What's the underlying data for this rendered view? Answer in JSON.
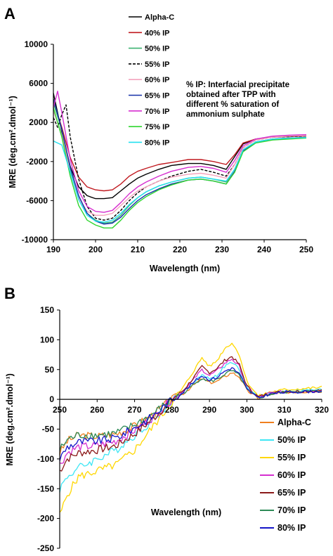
{
  "panels": {
    "a": "A",
    "b": "B"
  },
  "chart_data": [
    {
      "type": "line",
      "panel": "A",
      "xlabel": "Wavelength (nm)",
      "ylabel": "MRE (deg.cm².dmol⁻¹)",
      "xlim": [
        190,
        250
      ],
      "ylim": [
        -10000,
        10000
      ],
      "xticks": [
        190,
        200,
        210,
        220,
        230,
        240,
        250
      ],
      "yticks": [
        10000,
        6000,
        2000,
        -2000,
        -6000,
        -10000
      ],
      "legend_position": "top-center",
      "annotation": [
        "% IP: Interfacial precipitate",
        "obtained after TPP with",
        "different % saturation of",
        "ammonium sulphate"
      ],
      "series": [
        {
          "name": "Alpha-C",
          "color": "#000000",
          "dash": false,
          "x": [
            190,
            192,
            194,
            196,
            198,
            200,
            202,
            204,
            206,
            208,
            210,
            212,
            215,
            218,
            222,
            225,
            228,
            231,
            233,
            235,
            238,
            242,
            246,
            250
          ],
          "y": [
            5000,
            1000,
            -2500,
            -4600,
            -5500,
            -5800,
            -5800,
            -5700,
            -5000,
            -4300,
            -3700,
            -3300,
            -2800,
            -2400,
            -2200,
            -2200,
            -2400,
            -2800,
            -1500,
            -200,
            300,
            500,
            600,
            650
          ]
        },
        {
          "name": "40% IP",
          "color": "#c0191f",
          "dash": false,
          "x": [
            190,
            192,
            194,
            196,
            198,
            200,
            202,
            204,
            206,
            208,
            210,
            212,
            215,
            218,
            222,
            225,
            228,
            231,
            233,
            235,
            238,
            242,
            246,
            250
          ],
          "y": [
            4200,
            1500,
            -1600,
            -3600,
            -4600,
            -4900,
            -5000,
            -4900,
            -4300,
            -3500,
            -3000,
            -2700,
            -2300,
            -2100,
            -1800,
            -1800,
            -2000,
            -2300,
            -1300,
            -100,
            300,
            500,
            550,
            600
          ]
        },
        {
          "name": "50% IP",
          "color": "#3cb371",
          "dash": false,
          "x": [
            190,
            192,
            194,
            196,
            198,
            200,
            202,
            204,
            206,
            208,
            210,
            212,
            215,
            218,
            222,
            225,
            228,
            231,
            233,
            235,
            238,
            242,
            246,
            250
          ],
          "y": [
            4000,
            1200,
            -2800,
            -5600,
            -7300,
            -8000,
            -8300,
            -8200,
            -7500,
            -6500,
            -5700,
            -5100,
            -4500,
            -4100,
            -3700,
            -3600,
            -3800,
            -4100,
            -2800,
            -800,
            0,
            300,
            400,
            450
          ]
        },
        {
          "name": "55% IP",
          "color": "#000000",
          "dash": true,
          "x": [
            190,
            191,
            192,
            193,
            194,
            196,
            198,
            200,
            202,
            204,
            206,
            208,
            210,
            212,
            215,
            218,
            222,
            225,
            228,
            231,
            233,
            235,
            238,
            242,
            246,
            250
          ],
          "y": [
            2500,
            1500,
            2800,
            3800,
            500,
            -3800,
            -6600,
            -7800,
            -8000,
            -7800,
            -7000,
            -6000,
            -5200,
            -4600,
            -4000,
            -3500,
            -3000,
            -2800,
            -3100,
            -3500,
            -2300,
            -600,
            200,
            500,
            550,
            600
          ]
        },
        {
          "name": "60% IP",
          "color": "#f4a3bd",
          "dash": false,
          "x": [
            190,
            192,
            194,
            196,
            198,
            200,
            202,
            204,
            206,
            208,
            210,
            212,
            215,
            218,
            222,
            225,
            228,
            231,
            233,
            235,
            238,
            242,
            246,
            250
          ],
          "y": [
            3200,
            700,
            -3100,
            -5700,
            -7100,
            -7500,
            -7500,
            -7300,
            -6500,
            -5700,
            -5000,
            -4600,
            -4000,
            -3600,
            -3300,
            -3200,
            -3400,
            -3700,
            -2300,
            -600,
            200,
            500,
            600,
            650
          ]
        },
        {
          "name": "65% IP",
          "color": "#1530a8",
          "dash": false,
          "x": [
            190,
            192,
            194,
            196,
            198,
            200,
            202,
            204,
            206,
            208,
            210,
            212,
            215,
            218,
            222,
            225,
            228,
            231,
            233,
            235,
            238,
            242,
            246,
            250
          ],
          "y": [
            4400,
            1300,
            -2600,
            -5500,
            -7300,
            -8100,
            -8400,
            -8300,
            -7700,
            -6800,
            -6000,
            -5400,
            -4800,
            -4300,
            -3900,
            -3800,
            -4000,
            -4300,
            -3000,
            -900,
            0,
            300,
            400,
            450
          ]
        },
        {
          "name": "70% IP",
          "color": "#d62fd0",
          "dash": false,
          "x": [
            190,
            191,
            192,
            194,
            196,
            198,
            200,
            202,
            204,
            206,
            208,
            210,
            212,
            215,
            218,
            222,
            225,
            228,
            231,
            233,
            235,
            238,
            242,
            246,
            250
          ],
          "y": [
            3500,
            5200,
            3000,
            -1800,
            -5000,
            -6600,
            -7100,
            -7200,
            -7000,
            -6200,
            -5300,
            -4600,
            -4100,
            -3500,
            -3000,
            -2600,
            -2500,
            -2700,
            -3100,
            -1900,
            -400,
            300,
            600,
            700,
            750
          ]
        },
        {
          "name": "75% IP",
          "color": "#2fd62f",
          "dash": false,
          "x": [
            190,
            192,
            194,
            196,
            198,
            200,
            202,
            204,
            206,
            208,
            210,
            212,
            215,
            218,
            222,
            225,
            228,
            231,
            233,
            235,
            238,
            242,
            246,
            250
          ],
          "y": [
            3500,
            500,
            -3500,
            -6500,
            -8000,
            -8500,
            -8800,
            -8800,
            -8000,
            -7000,
            -6200,
            -5600,
            -4900,
            -4400,
            -3900,
            -3800,
            -4000,
            -4300,
            -3100,
            -1000,
            -100,
            200,
            300,
            400
          ]
        },
        {
          "name": "80% IP",
          "color": "#22e0f0",
          "dash": false,
          "x": [
            190,
            192,
            194,
            196,
            198,
            200,
            202,
            204,
            206,
            208,
            210,
            212,
            215,
            218,
            222,
            225,
            228,
            231,
            233,
            235,
            238,
            242,
            246,
            250
          ],
          "y": [
            100,
            -300,
            -3100,
            -5900,
            -7500,
            -8100,
            -8200,
            -8000,
            -7300,
            -6400,
            -5700,
            -5100,
            -4500,
            -4100,
            -3700,
            -3600,
            -3800,
            -4000,
            -2800,
            -800,
            0,
            300,
            400,
            450
          ]
        }
      ]
    },
    {
      "type": "line",
      "panel": "B",
      "xlabel": "Wavelength (nm)",
      "ylabel": "MRE (deg.cm².dmol⁻¹)",
      "xlim": [
        250,
        320
      ],
      "ylim": [
        -250,
        150
      ],
      "xticks": [
        250,
        260,
        270,
        280,
        290,
        300,
        310,
        320
      ],
      "yticks": [
        150,
        100,
        50,
        0,
        -50,
        -100,
        -150,
        -200,
        -250
      ],
      "legend_position": "bottom-right",
      "series": [
        {
          "name": "Alpha-C",
          "color": "#f07f1e",
          "x": [
            250,
            252,
            255,
            260,
            265,
            270,
            275,
            280,
            283,
            286,
            288,
            290,
            292,
            294,
            296,
            298,
            300,
            303,
            306,
            310,
            315,
            320
          ],
          "y": [
            -90,
            -70,
            -60,
            -62,
            -58,
            -45,
            -25,
            0,
            10,
            25,
            35,
            28,
            30,
            38,
            45,
            38,
            15,
            2,
            8,
            12,
            13,
            14
          ]
        },
        {
          "name": "50% IP",
          "color": "#3ee6f4",
          "x": [
            250,
            252,
            255,
            260,
            265,
            270,
            275,
            280,
            283,
            286,
            288,
            290,
            292,
            294,
            296,
            298,
            300,
            303,
            306,
            310,
            315,
            320
          ],
          "y": [
            -150,
            -130,
            -115,
            -100,
            -85,
            -60,
            -35,
            -2,
            12,
            30,
            42,
            34,
            40,
            55,
            62,
            50,
            20,
            4,
            10,
            14,
            15,
            16
          ]
        },
        {
          "name": "55% IP",
          "color": "#ffd700",
          "x": [
            250,
            252,
            255,
            260,
            265,
            270,
            275,
            280,
            283,
            286,
            288,
            290,
            292,
            294,
            296,
            298,
            300,
            303,
            306,
            310,
            315,
            320
          ],
          "y": [
            -195,
            -160,
            -130,
            -120,
            -110,
            -85,
            -45,
            -5,
            20,
            50,
            70,
            55,
            65,
            85,
            95,
            75,
            30,
            5,
            12,
            16,
            18,
            20
          ]
        },
        {
          "name": "60% IP",
          "color": "#d62fd0",
          "x": [
            250,
            252,
            255,
            260,
            265,
            270,
            275,
            280,
            283,
            286,
            288,
            290,
            292,
            294,
            296,
            298,
            300,
            303,
            306,
            310,
            315,
            320
          ],
          "y": [
            -110,
            -90,
            -80,
            -78,
            -70,
            -52,
            -30,
            0,
            14,
            35,
            50,
            40,
            48,
            60,
            68,
            55,
            22,
            3,
            10,
            13,
            14,
            15
          ]
        },
        {
          "name": "65% IP",
          "color": "#8b1a1a",
          "x": [
            250,
            252,
            255,
            260,
            265,
            270,
            275,
            280,
            283,
            286,
            288,
            290,
            292,
            294,
            296,
            298,
            300,
            303,
            306,
            310,
            315,
            320
          ],
          "y": [
            -120,
            -100,
            -90,
            -85,
            -78,
            -58,
            -32,
            0,
            15,
            38,
            55,
            45,
            52,
            65,
            72,
            58,
            22,
            4,
            10,
            13,
            14,
            15
          ]
        },
        {
          "name": "70% IP",
          "color": "#2e8b57",
          "x": [
            250,
            252,
            255,
            260,
            265,
            270,
            275,
            280,
            283,
            286,
            288,
            290,
            292,
            294,
            296,
            298,
            300,
            303,
            306,
            310,
            315,
            320
          ],
          "y": [
            -85,
            -68,
            -60,
            -60,
            -57,
            -43,
            -24,
            0,
            10,
            26,
            36,
            30,
            33,
            42,
            48,
            40,
            16,
            2,
            8,
            12,
            13,
            14
          ]
        },
        {
          "name": "80% IP",
          "color": "#1515c8",
          "x": [
            250,
            252,
            255,
            260,
            265,
            270,
            275,
            280,
            283,
            286,
            288,
            290,
            292,
            294,
            296,
            298,
            300,
            303,
            306,
            310,
            315,
            320
          ],
          "y": [
            -100,
            -80,
            -72,
            -70,
            -65,
            -48,
            -28,
            0,
            12,
            30,
            40,
            33,
            37,
            47,
            53,
            43,
            17,
            2,
            9,
            12,
            13,
            14
          ]
        }
      ]
    }
  ]
}
